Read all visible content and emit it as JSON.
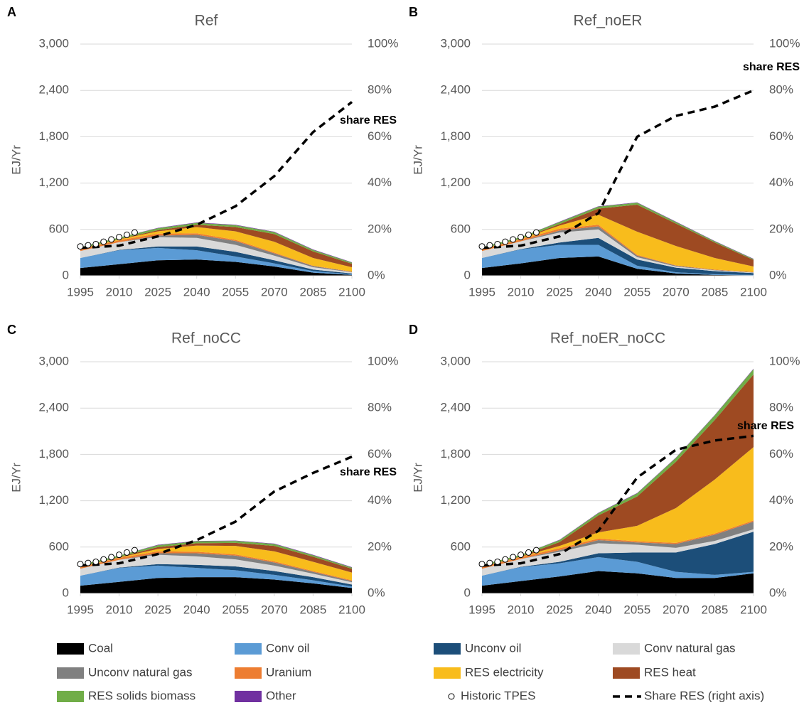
{
  "series_styles": [
    {
      "name": "Coal",
      "color": "#000000"
    },
    {
      "name": "Conv oil",
      "color": "#5b9bd5"
    },
    {
      "name": "Unconv oil",
      "color": "#1c4e79"
    },
    {
      "name": "Conv natural gas",
      "color": "#d9d9d9"
    },
    {
      "name": "Unconv natural gas",
      "color": "#808080"
    },
    {
      "name": "Uranium",
      "color": "#ed7d31"
    },
    {
      "name": "RES electricity",
      "color": "#f8bc1c"
    },
    {
      "name": "RES heat",
      "color": "#9e4a22"
    },
    {
      "name": "RES solids biomass",
      "color": "#70ad47"
    },
    {
      "name": "Other",
      "color": "#7030a0"
    }
  ],
  "legend_extra": [
    "Historic TPES",
    "Share RES (right axis)"
  ],
  "chart_data": [
    {
      "type": "stacked_area",
      "panel_label": "A",
      "title": "Ref",
      "y_label": "EJ/Yr",
      "annotation": "share RES",
      "x": [
        1995,
        2010,
        2025,
        2040,
        2055,
        2070,
        2085,
        2100
      ],
      "xlim": [
        1995,
        2100
      ],
      "xticks": [
        1995,
        2010,
        2025,
        2040,
        2055,
        2070,
        2085,
        2100
      ],
      "ylim": [
        0,
        3000
      ],
      "yticks": [
        0,
        600,
        {
          "value": 1200,
          "label": "1,200"
        },
        {
          "value": 1800,
          "label": "1,800"
        },
        {
          "value": 2400,
          "label": "2,400"
        },
        {
          "value": 3000,
          "label": "3,000"
        }
      ],
      "y2lim": [
        0,
        100
      ],
      "y2ticks": [
        {
          "value": 0,
          "label": "0%"
        },
        {
          "value": 20,
          "label": "20%"
        },
        {
          "value": 40,
          "label": "40%"
        },
        {
          "value": 60,
          "label": "60%"
        },
        {
          "value": 80,
          "label": "80%"
        },
        {
          "value": 100,
          "label": "100%"
        }
      ],
      "series": [
        {
          "values": [
            100,
            150,
            200,
            210,
            180,
            120,
            40,
            10
          ]
        },
        {
          "values": [
            130,
            180,
            160,
            120,
            70,
            40,
            20,
            10
          ]
        },
        {
          "values": [
            0,
            5,
            20,
            50,
            60,
            40,
            20,
            10
          ]
        },
        {
          "values": [
            90,
            100,
            120,
            110,
            90,
            60,
            30,
            15
          ]
        },
        {
          "values": [
            0,
            0,
            20,
            40,
            50,
            30,
            15,
            5
          ]
        },
        {
          "values": [
            20,
            25,
            25,
            20,
            15,
            10,
            5,
            5
          ]
        },
        {
          "values": [
            5,
            10,
            30,
            80,
            110,
            140,
            100,
            55
          ]
        },
        {
          "values": [
            5,
            5,
            15,
            30,
            55,
            100,
            85,
            45
          ]
        },
        {
          "values": [
            20,
            20,
            25,
            25,
            25,
            25,
            20,
            15
          ]
        },
        {
          "values": [
            0,
            0,
            5,
            5,
            5,
            5,
            5,
            5
          ]
        }
      ],
      "historic_tpes": {
        "x": [
          1995,
          1998,
          2001,
          2004,
          2007,
          2010,
          2013,
          2016
        ],
        "values": [
          380,
          395,
          410,
          440,
          470,
          500,
          530,
          560
        ]
      },
      "share_res": {
        "axis": "y2",
        "values": [
          12,
          13,
          17,
          22,
          30,
          43,
          62,
          75
        ]
      }
    },
    {
      "type": "stacked_area",
      "panel_label": "B",
      "title": "Ref_noER",
      "y_label": "EJ/Yr",
      "annotation": "share RES",
      "x": [
        1995,
        2010,
        2025,
        2040,
        2055,
        2070,
        2085,
        2100
      ],
      "xlim": [
        1995,
        2100
      ],
      "xticks": [
        1995,
        2010,
        2025,
        2040,
        2055,
        2070,
        2085,
        2100
      ],
      "ylim": [
        0,
        3000
      ],
      "yticks": [
        0,
        600,
        {
          "value": 1200,
          "label": "1,200"
        },
        {
          "value": 1800,
          "label": "1,800"
        },
        {
          "value": 2400,
          "label": "2,400"
        },
        {
          "value": 3000,
          "label": "3,000"
        }
      ],
      "y2lim": [
        0,
        100
      ],
      "y2ticks": [
        {
          "value": 0,
          "label": "0%"
        },
        {
          "value": 20,
          "label": "20%"
        },
        {
          "value": 40,
          "label": "40%"
        },
        {
          "value": 60,
          "label": "60%"
        },
        {
          "value": 80,
          "label": "80%"
        },
        {
          "value": 100,
          "label": "100%"
        }
      ],
      "series": [
        {
          "values": [
            100,
            160,
            230,
            250,
            90,
            30,
            10,
            5
          ]
        },
        {
          "values": [
            130,
            180,
            170,
            150,
            40,
            15,
            10,
            5
          ]
        },
        {
          "values": [
            0,
            5,
            30,
            90,
            80,
            60,
            40,
            25
          ]
        },
        {
          "values": [
            90,
            100,
            130,
            110,
            30,
            15,
            10,
            5
          ]
        },
        {
          "values": [
            0,
            0,
            25,
            40,
            20,
            10,
            5,
            5
          ]
        },
        {
          "values": [
            20,
            25,
            25,
            20,
            10,
            5,
            5,
            5
          ]
        },
        {
          "values": [
            5,
            5,
            40,
            130,
            300,
            250,
            150,
            70
          ]
        },
        {
          "values": [
            5,
            5,
            20,
            80,
            350,
            290,
            200,
            85
          ]
        },
        {
          "values": [
            20,
            20,
            25,
            25,
            25,
            20,
            15,
            10
          ]
        },
        {
          "values": [
            0,
            0,
            5,
            5,
            5,
            5,
            5,
            5
          ]
        }
      ],
      "historic_tpes": {
        "x": [
          1995,
          1998,
          2001,
          2004,
          2007,
          2010,
          2013,
          2016
        ],
        "values": [
          380,
          395,
          410,
          440,
          470,
          500,
          530,
          560
        ]
      },
      "share_res": {
        "axis": "y2",
        "values": [
          12,
          13,
          17,
          27,
          60,
          69,
          73,
          80
        ]
      }
    },
    {
      "type": "stacked_area",
      "panel_label": "C",
      "title": "Ref_noCC",
      "y_label": "EJ/Yr",
      "annotation": "share RES",
      "x": [
        1995,
        2010,
        2025,
        2040,
        2055,
        2070,
        2085,
        2100
      ],
      "xlim": [
        1995,
        2100
      ],
      "xticks": [
        1995,
        2010,
        2025,
        2040,
        2055,
        2070,
        2085,
        2100
      ],
      "ylim": [
        0,
        3000
      ],
      "yticks": [
        0,
        600,
        {
          "value": 1200,
          "label": "1,200"
        },
        {
          "value": 1800,
          "label": "1,800"
        },
        {
          "value": 2400,
          "label": "2,400"
        },
        {
          "value": 3000,
          "label": "3,000"
        }
      ],
      "y2lim": [
        0,
        100
      ],
      "y2ticks": [
        {
          "value": 0,
          "label": "0%"
        },
        {
          "value": 20,
          "label": "20%"
        },
        {
          "value": 40,
          "label": "40%"
        },
        {
          "value": 60,
          "label": "60%"
        },
        {
          "value": 80,
          "label": "80%"
        },
        {
          "value": 100,
          "label": "100%"
        }
      ],
      "series": [
        {
          "values": [
            100,
            150,
            200,
            210,
            210,
            180,
            130,
            70
          ]
        },
        {
          "values": [
            130,
            180,
            160,
            120,
            90,
            60,
            40,
            20
          ]
        },
        {
          "values": [
            0,
            5,
            20,
            40,
            50,
            50,
            40,
            25
          ]
        },
        {
          "values": [
            90,
            100,
            120,
            110,
            90,
            70,
            45,
            30
          ]
        },
        {
          "values": [
            0,
            0,
            20,
            40,
            50,
            40,
            25,
            15
          ]
        },
        {
          "values": [
            20,
            25,
            25,
            20,
            15,
            15,
            10,
            10
          ]
        },
        {
          "values": [
            5,
            5,
            30,
            80,
            110,
            130,
            120,
            100
          ]
        },
        {
          "values": [
            5,
            5,
            25,
            30,
            40,
            70,
            65,
            50
          ]
        },
        {
          "values": [
            20,
            20,
            25,
            25,
            25,
            25,
            20,
            15
          ]
        },
        {
          "values": [
            0,
            0,
            5,
            5,
            5,
            5,
            5,
            5
          ]
        }
      ],
      "historic_tpes": {
        "x": [
          1995,
          1998,
          2001,
          2004,
          2007,
          2010,
          2013,
          2016
        ],
        "values": [
          380,
          395,
          410,
          440,
          470,
          500,
          530,
          560
        ]
      },
      "share_res": {
        "axis": "y2",
        "values": [
          12,
          13,
          17,
          23,
          31,
          44,
          52,
          59
        ]
      }
    },
    {
      "type": "stacked_area",
      "panel_label": "D",
      "title": "Ref_noER_noCC",
      "y_label": "EJ/Yr",
      "annotation": "share RES",
      "x": [
        1995,
        2010,
        2025,
        2040,
        2055,
        2070,
        2085,
        2100
      ],
      "xlim": [
        1995,
        2100
      ],
      "xticks": [
        1995,
        2010,
        2025,
        2040,
        2055,
        2070,
        2085,
        2100
      ],
      "ylim": [
        0,
        3000
      ],
      "yticks": [
        0,
        600,
        {
          "value": 1200,
          "label": "1,200"
        },
        {
          "value": 1800,
          "label": "1,800"
        },
        {
          "value": 2400,
          "label": "2,400"
        },
        {
          "value": 3000,
          "label": "3,000"
        }
      ],
      "y2lim": [
        0,
        100
      ],
      "y2ticks": [
        {
          "value": 0,
          "label": "0%"
        },
        {
          "value": 20,
          "label": "20%"
        },
        {
          "value": 40,
          "label": "40%"
        },
        {
          "value": 60,
          "label": "60%"
        },
        {
          "value": 80,
          "label": "80%"
        },
        {
          "value": 100,
          "label": "100%"
        }
      ],
      "series": [
        {
          "values": [
            100,
            160,
            220,
            290,
            260,
            200,
            200,
            260
          ]
        },
        {
          "values": [
            130,
            180,
            170,
            180,
            150,
            80,
            40,
            20
          ]
        },
        {
          "values": [
            0,
            5,
            20,
            50,
            120,
            250,
            400,
            520
          ]
        },
        {
          "values": [
            90,
            100,
            130,
            130,
            100,
            60,
            40,
            30
          ]
        },
        {
          "values": [
            0,
            0,
            20,
            40,
            30,
            50,
            80,
            100
          ]
        },
        {
          "values": [
            20,
            25,
            25,
            20,
            15,
            15,
            15,
            15
          ]
        },
        {
          "values": [
            5,
            5,
            30,
            80,
            200,
            450,
            700,
            950
          ]
        },
        {
          "values": [
            5,
            5,
            50,
            220,
            380,
            600,
            770,
            940
          ]
        },
        {
          "values": [
            20,
            20,
            25,
            30,
            40,
            50,
            60,
            70
          ]
        },
        {
          "values": [
            0,
            0,
            5,
            5,
            5,
            5,
            5,
            5
          ]
        }
      ],
      "historic_tpes": {
        "x": [
          1995,
          1998,
          2001,
          2004,
          2007,
          2010,
          2013,
          2016
        ],
        "values": [
          380,
          395,
          410,
          440,
          470,
          500,
          530,
          560
        ]
      },
      "share_res": {
        "axis": "y2",
        "values": [
          12,
          13,
          17,
          27,
          50,
          62,
          66,
          68
        ]
      }
    }
  ]
}
